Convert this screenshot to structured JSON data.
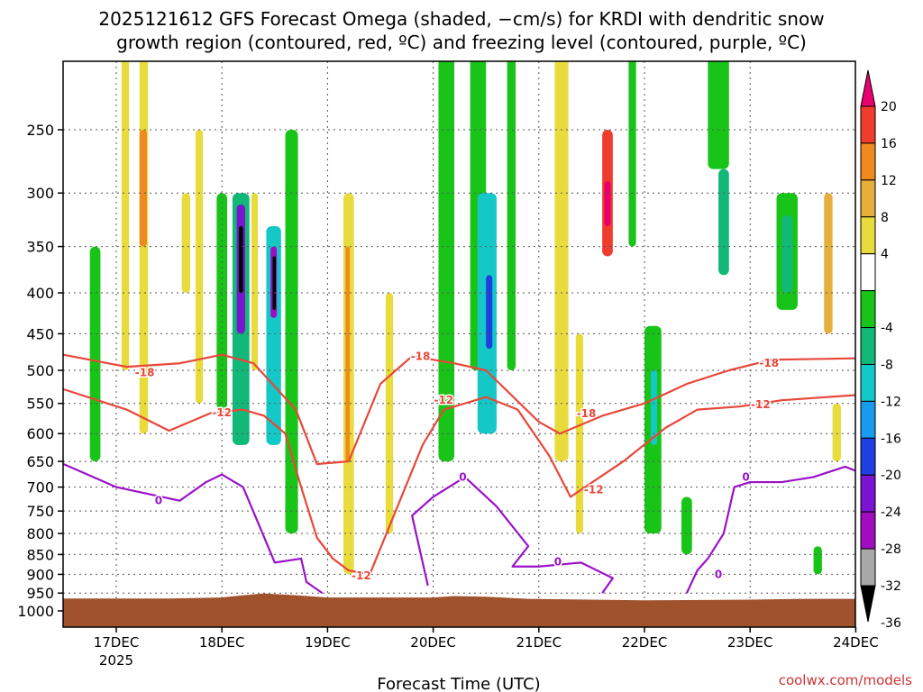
{
  "chart_data": {
    "type": "heatmap",
    "title_line1": "2025121612 GFS Forecast Omega (shaded, −cm/s) for KRDI with dendritic snow",
    "title_line2": "growth region (contoured, red, ºC) and freezing level (contoured, purple, ºC)",
    "xlabel": "Forecast Time (UTC)",
    "ylabel": "",
    "credit": "coolwx.com/models",
    "x_unit": "days since 17DEC 00Z",
    "xlim": [
      -0.5,
      7.0
    ],
    "ylim_hpa": [
      200,
      1050
    ],
    "x_ticks": [
      {
        "x": 0,
        "label": "17DEC",
        "sublabel": "2025"
      },
      {
        "x": 1,
        "label": "18DEC",
        "sublabel": ""
      },
      {
        "x": 2,
        "label": "19DEC",
        "sublabel": ""
      },
      {
        "x": 3,
        "label": "20DEC",
        "sublabel": ""
      },
      {
        "x": 4,
        "label": "21DEC",
        "sublabel": ""
      },
      {
        "x": 5,
        "label": "22DEC",
        "sublabel": ""
      },
      {
        "x": 6,
        "label": "23DEC",
        "sublabel": ""
      },
      {
        "x": 7,
        "label": "24DEC",
        "sublabel": ""
      }
    ],
    "y_ticks": [
      250,
      300,
      350,
      400,
      450,
      500,
      550,
      600,
      650,
      700,
      750,
      800,
      850,
      900,
      950,
      1000
    ],
    "colorbar": {
      "labels": [
        "20",
        "16",
        "12",
        "8",
        "4",
        "-4",
        "-8",
        "-12",
        "-16",
        "-20",
        "-24",
        "-28",
        "-32",
        "-36"
      ],
      "colors": [
        "#e8006e",
        "#f03c2c",
        "#ee8a1e",
        "#e6ae3a",
        "#e8dc3c",
        "#ffffff",
        "#18c418",
        "#12b878",
        "#14c8c8",
        "#1a9aee",
        "#1e40e0",
        "#7a14d0",
        "#a00cc0",
        "#a8a8a8",
        "#000000"
      ]
    },
    "terrain": {
      "color": "#a0522d",
      "surface": [
        [
          -0.5,
          965
        ],
        [
          0.5,
          965
        ],
        [
          1.0,
          962
        ],
        [
          1.2,
          956
        ],
        [
          1.4,
          951
        ],
        [
          1.7,
          956
        ],
        [
          2.0,
          962
        ],
        [
          3.0,
          962
        ],
        [
          3.2,
          958
        ],
        [
          3.5,
          960
        ],
        [
          3.9,
          966
        ],
        [
          5.0,
          970
        ],
        [
          6.0,
          968
        ],
        [
          6.5,
          966
        ],
        [
          7.0,
          966
        ]
      ]
    },
    "omega_cells": [
      {
        "x0": 1.1,
        "x1": 1.26,
        "p0": 300,
        "p1": 620,
        "c": 7
      },
      {
        "x0": 1.14,
        "x1": 1.22,
        "p0": 310,
        "p1": 450,
        "c": 11
      },
      {
        "x0": 1.16,
        "x1": 1.2,
        "p0": 330,
        "p1": 400,
        "c": 14
      },
      {
        "x0": 1.42,
        "x1": 1.56,
        "p0": 330,
        "p1": 620,
        "c": 8
      },
      {
        "x0": 1.46,
        "x1": 1.52,
        "p0": 350,
        "p1": 430,
        "c": 12
      },
      {
        "x0": 1.48,
        "x1": 1.51,
        "p0": 360,
        "p1": 420,
        "c": 14
      },
      {
        "x0": 0.95,
        "x1": 1.05,
        "p0": 300,
        "p1": 560,
        "c": 6
      },
      {
        "x0": 1.6,
        "x1": 1.72,
        "p0": 250,
        "p1": 800,
        "c": 6
      },
      {
        "x0": 0.22,
        "x1": 0.3,
        "p0": 200,
        "p1": 600,
        "c": 4
      },
      {
        "x0": 0.22,
        "x1": 0.29,
        "p0": 250,
        "p1": 350,
        "c": 2
      },
      {
        "x0": 0.75,
        "x1": 0.82,
        "p0": 250,
        "p1": 550,
        "c": 4
      },
      {
        "x0": 2.15,
        "x1": 2.25,
        "p0": 300,
        "p1": 900,
        "c": 4
      },
      {
        "x0": 2.17,
        "x1": 2.21,
        "p0": 350,
        "p1": 650,
        "c": 2
      },
      {
        "x0": 3.05,
        "x1": 3.2,
        "p0": 200,
        "p1": 650,
        "c": 6
      },
      {
        "x0": 3.35,
        "x1": 3.5,
        "p0": 200,
        "p1": 500,
        "c": 6
      },
      {
        "x0": 3.42,
        "x1": 3.6,
        "p0": 300,
        "p1": 600,
        "c": 8
      },
      {
        "x0": 3.5,
        "x1": 3.56,
        "p0": 380,
        "p1": 470,
        "c": 10
      },
      {
        "x0": 3.7,
        "x1": 3.78,
        "p0": 200,
        "p1": 500,
        "c": 6
      },
      {
        "x0": 4.15,
        "x1": 4.28,
        "p0": 200,
        "p1": 650,
        "c": 4
      },
      {
        "x0": 4.6,
        "x1": 4.7,
        "p0": 250,
        "p1": 360,
        "c": 1
      },
      {
        "x0": 4.62,
        "x1": 4.68,
        "p0": 290,
        "p1": 330,
        "c": 0
      },
      {
        "x0": 4.85,
        "x1": 4.92,
        "p0": 200,
        "p1": 350,
        "c": 6
      },
      {
        "x0": 5.0,
        "x1": 5.16,
        "p0": 440,
        "p1": 800,
        "c": 6
      },
      {
        "x0": 5.06,
        "x1": 5.12,
        "p0": 500,
        "p1": 620,
        "c": 8
      },
      {
        "x0": 5.35,
        "x1": 5.45,
        "p0": 720,
        "p1": 850,
        "c": 6
      },
      {
        "x0": 5.6,
        "x1": 5.8,
        "p0": 200,
        "p1": 280,
        "c": 6
      },
      {
        "x0": 5.7,
        "x1": 5.8,
        "p0": 280,
        "p1": 380,
        "c": 7
      },
      {
        "x0": 6.25,
        "x1": 6.45,
        "p0": 300,
        "p1": 420,
        "c": 6
      },
      {
        "x0": 6.3,
        "x1": 6.4,
        "p0": 320,
        "p1": 400,
        "c": 7
      },
      {
        "x0": 6.7,
        "x1": 6.78,
        "p0": 300,
        "p1": 450,
        "c": 3
      },
      {
        "x0": 6.78,
        "x1": 6.86,
        "p0": 550,
        "p1": 650,
        "c": 4
      },
      {
        "x0": 0.62,
        "x1": 0.7,
        "p0": 300,
        "p1": 400,
        "c": 4
      },
      {
        "x0": -0.25,
        "x1": -0.15,
        "p0": 350,
        "p1": 650,
        "c": 6
      },
      {
        "x0": 0.05,
        "x1": 0.12,
        "p0": 200,
        "p1": 500,
        "c": 4
      },
      {
        "x0": 2.55,
        "x1": 2.62,
        "p0": 400,
        "p1": 800,
        "c": 4
      },
      {
        "x0": 6.6,
        "x1": 6.68,
        "p0": 830,
        "p1": 900,
        "c": 6
      },
      {
        "x0": 4.35,
        "x1": 4.42,
        "p0": 450,
        "p1": 800,
        "c": 4
      },
      {
        "x0": 1.28,
        "x1": 1.34,
        "p0": 300,
        "p1": 500,
        "c": 4
      }
    ],
    "contours": [
      {
        "name": "-18",
        "color": "#e8473a",
        "pts": [
          [
            -0.5,
            478
          ],
          [
            0.1,
            495
          ],
          [
            0.6,
            490
          ],
          [
            1.0,
            478
          ],
          [
            1.3,
            490
          ],
          [
            1.7,
            560
          ],
          [
            1.9,
            655
          ],
          [
            2.2,
            650
          ],
          [
            2.5,
            520
          ],
          [
            2.8,
            480
          ],
          [
            3.2,
            490
          ],
          [
            3.5,
            500
          ],
          [
            4.0,
            580
          ],
          [
            4.2,
            600
          ],
          [
            4.6,
            570
          ],
          [
            5.0,
            550
          ],
          [
            5.4,
            520
          ],
          [
            5.8,
            500
          ],
          [
            6.2,
            485
          ],
          [
            7.0,
            483
          ]
        ],
        "labels": [
          {
            "x": 0.27,
            "p": 503,
            "text": "-18"
          },
          {
            "x": 2.88,
            "p": 480,
            "text": "-18"
          },
          {
            "x": 4.45,
            "p": 566,
            "text": "-18"
          },
          {
            "x": 6.18,
            "p": 490,
            "text": "-18"
          }
        ]
      },
      {
        "name": "-12",
        "color": "#e8473a",
        "pts": [
          [
            -0.5,
            528
          ],
          [
            0.1,
            560
          ],
          [
            0.5,
            595
          ],
          [
            0.9,
            565
          ],
          [
            1.2,
            560
          ],
          [
            1.4,
            570
          ],
          [
            1.6,
            600
          ],
          [
            1.75,
            700
          ],
          [
            1.9,
            810
          ],
          [
            2.05,
            860
          ],
          [
            2.2,
            890
          ],
          [
            2.4,
            900
          ],
          [
            2.9,
            620
          ],
          [
            3.1,
            560
          ],
          [
            3.5,
            540
          ],
          [
            3.8,
            560
          ],
          [
            4.1,
            640
          ],
          [
            4.3,
            720
          ],
          [
            4.8,
            650
          ],
          [
            5.2,
            590
          ],
          [
            5.5,
            560
          ],
          [
            5.9,
            555
          ],
          [
            6.3,
            545
          ],
          [
            7.0,
            537
          ]
        ],
        "labels": [
          {
            "x": 1.0,
            "p": 565,
            "text": "-12"
          },
          {
            "x": 3.1,
            "p": 545,
            "text": "-12"
          },
          {
            "x": 4.52,
            "p": 705,
            "text": "-12"
          },
          {
            "x": 6.1,
            "p": 552,
            "text": "-12"
          },
          {
            "x": 2.32,
            "p": 904,
            "text": "-12"
          }
        ]
      },
      {
        "name": "0",
        "color": "#9a12c8",
        "pts": [
          [
            -0.5,
            655
          ],
          [
            0.0,
            700
          ],
          [
            0.6,
            728
          ],
          [
            0.85,
            690
          ],
          [
            1.0,
            675
          ],
          [
            1.2,
            700
          ],
          [
            1.35,
            780
          ],
          [
            1.5,
            870
          ],
          [
            1.75,
            860
          ],
          [
            1.8,
            920
          ],
          [
            1.95,
            950
          ]
        ],
        "labels": [
          {
            "x": 0.4,
            "p": 728,
            "text": "0"
          }
        ]
      },
      {
        "name": "0b",
        "color": "#9a12c8",
        "pts": [
          [
            2.95,
            930
          ],
          [
            2.8,
            760
          ],
          [
            3.0,
            720
          ],
          [
            3.3,
            680
          ],
          [
            3.6,
            740
          ],
          [
            3.9,
            830
          ],
          [
            3.75,
            880
          ],
          [
            4.0,
            880
          ],
          [
            4.4,
            870
          ],
          [
            4.7,
            910
          ],
          [
            4.6,
            950
          ]
        ],
        "labels": [
          {
            "x": 3.28,
            "p": 680,
            "text": "0"
          },
          {
            "x": 4.18,
            "p": 868,
            "text": "0"
          }
        ]
      },
      {
        "name": "0c",
        "color": "#9a12c8",
        "pts": [
          [
            5.4,
            950
          ],
          [
            5.5,
            890
          ],
          [
            5.6,
            860
          ],
          [
            5.75,
            800
          ],
          [
            5.85,
            700
          ],
          [
            6.0,
            690
          ],
          [
            6.3,
            690
          ],
          [
            6.6,
            680
          ],
          [
            6.9,
            660
          ],
          [
            7.0,
            668
          ]
        ],
        "labels": [
          {
            "x": 5.96,
            "p": 680,
            "text": "0"
          },
          {
            "x": 5.7,
            "p": 900,
            "text": "0"
          }
        ]
      }
    ]
  }
}
